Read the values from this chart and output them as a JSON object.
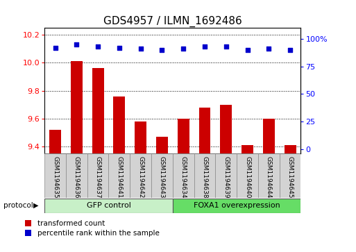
{
  "title": "GDS4957 / ILMN_1692486",
  "samples": [
    "GSM1194635",
    "GSM1194636",
    "GSM1194637",
    "GSM1194641",
    "GSM1194642",
    "GSM1194643",
    "GSM1194634",
    "GSM1194638",
    "GSM1194639",
    "GSM1194640",
    "GSM1194644",
    "GSM1194645"
  ],
  "transformed_count": [
    9.52,
    10.01,
    9.96,
    9.76,
    9.58,
    9.47,
    9.6,
    9.68,
    9.7,
    9.41,
    9.6,
    9.41
  ],
  "percentile_rank": [
    92,
    95,
    93,
    92,
    91,
    90,
    91,
    93,
    93,
    90,
    91,
    90
  ],
  "gfp_count": 6,
  "foxa1_count": 6,
  "group1_label": "GFP control",
  "group2_label": "FOXA1 overexpression",
  "protocol_label": "protocol",
  "legend_red": "transformed count",
  "legend_blue": "percentile rank within the sample",
  "ylim_left": [
    9.35,
    10.25
  ],
  "ylim_right": [
    -4,
    110
  ],
  "yticks_left": [
    9.4,
    9.6,
    9.8,
    10.0,
    10.2
  ],
  "yticks_right": [
    0,
    25,
    50,
    75,
    100
  ],
  "bar_color": "#cc0000",
  "dot_color": "#0000cc",
  "bar_width": 0.55,
  "grid_color": "#000000",
  "bg_color": "#d3d3d3",
  "group1_color": "#c8f0c8",
  "group2_color": "#66dd66",
  "title_fontsize": 11,
  "tick_fontsize": 8,
  "label_fontsize": 6.5,
  "prot_fontsize": 8,
  "legend_fontsize": 7.5
}
